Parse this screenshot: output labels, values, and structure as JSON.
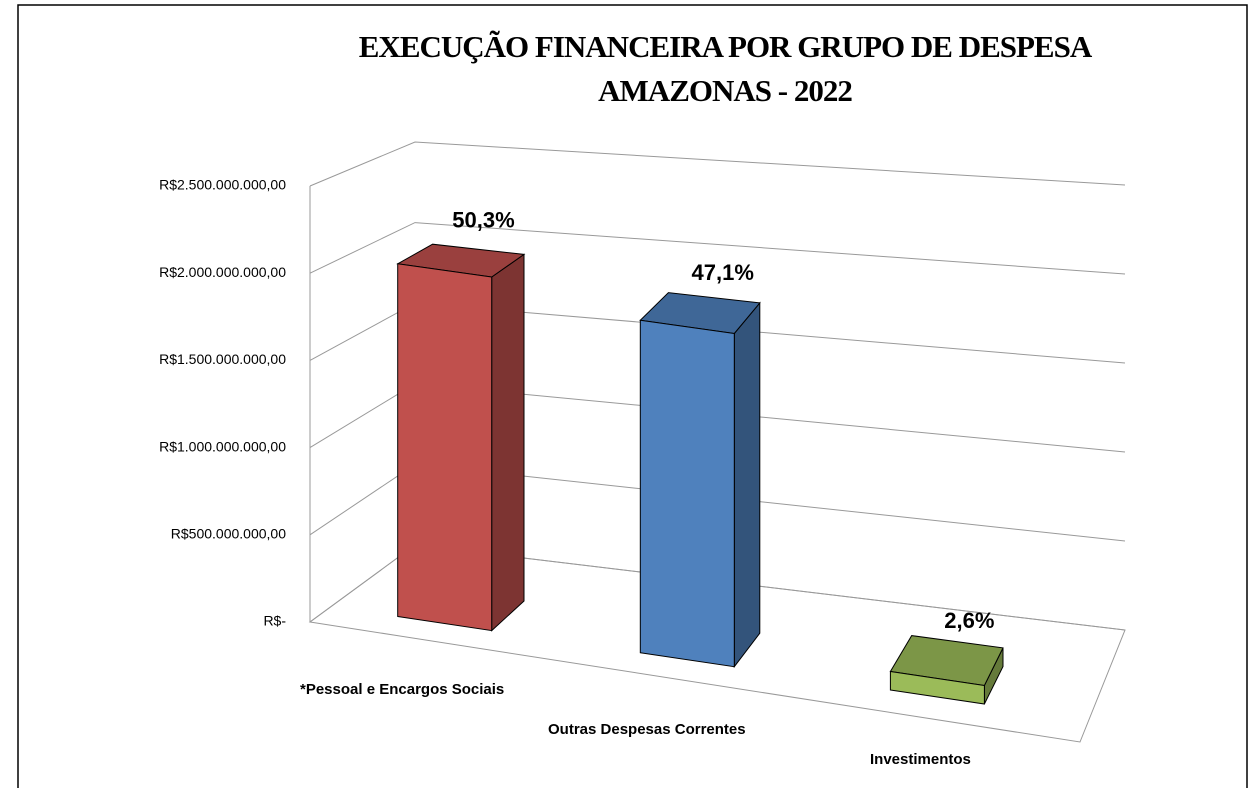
{
  "chart_data": {
    "type": "bar3d",
    "title": "EXECUÇÃO FINANCEIRA POR GRUPO DE DESPESA",
    "subtitle": "AMAZONAS - 2022",
    "categories": [
      "*Pessoal e Encargos Sociais",
      "Outras Despesas Correntes",
      "Investimentos"
    ],
    "values": [
      2050000000,
      1920000000,
      106000000
    ],
    "data_labels": [
      "50,3%",
      "47,1%",
      "2,6%"
    ],
    "colors": [
      "#c0504d",
      "#4f81bd",
      "#9bbb59"
    ],
    "ylim": [
      0,
      2500000000
    ],
    "yticks": [
      {
        "value": 0,
        "label": "R$-"
      },
      {
        "value": 500000000,
        "label": "R$500.000.000,00"
      },
      {
        "value": 1000000000,
        "label": "R$1.000.000.000,00"
      },
      {
        "value": 1500000000,
        "label": "R$1.500.000.000,00"
      },
      {
        "value": 2000000000,
        "label": "R$2.000.000.000,00"
      },
      {
        "value": 2500000000,
        "label": "R$2.500.000.000,00"
      }
    ],
    "grid": true
  }
}
